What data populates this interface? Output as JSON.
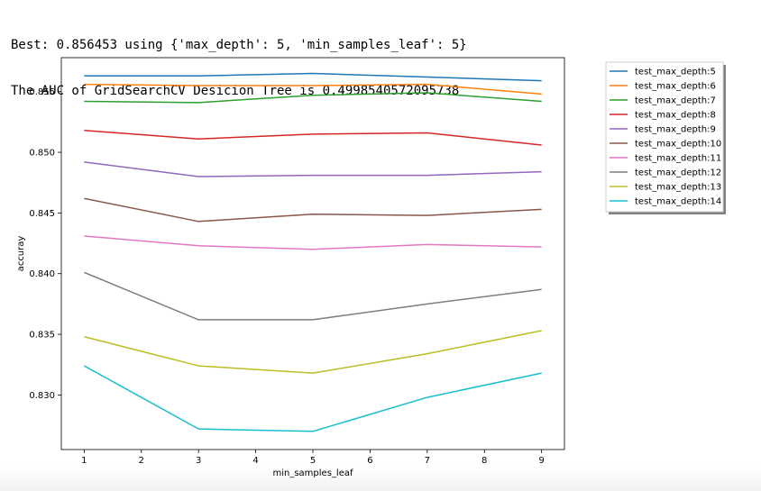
{
  "output": {
    "line1": "Best: 0.856453 using {'max_depth': 5, 'min_samples_leaf': 5}",
    "line2": "The AUC of GridSearchCV Desicion Tree is 0.4998540572095738"
  },
  "chart_data": {
    "type": "line",
    "title": "",
    "xlabel": "min_samples_leaf",
    "ylabel": "accuray",
    "xlim": [
      0.6,
      9.4
    ],
    "ylim": [
      0.8255,
      0.8578
    ],
    "x_ticks": [
      1,
      2,
      3,
      4,
      5,
      6,
      7,
      8,
      9
    ],
    "y_ticks": [
      0.83,
      0.835,
      0.84,
      0.845,
      0.85,
      0.855
    ],
    "y_tick_labels": [
      "0.830",
      "0.835",
      "0.840",
      "0.845",
      "0.850",
      "0.855"
    ],
    "x": [
      1,
      3,
      5,
      7,
      9
    ],
    "grid": false,
    "legend_position": "outside-upper-right",
    "series": [
      {
        "name": "test_max_depth:5",
        "color": "#1f77b4",
        "values": [
          0.8563,
          0.8563,
          0.8565,
          0.8562,
          0.8559
        ]
      },
      {
        "name": "test_max_depth:6",
        "color": "#ff7f0e",
        "values": [
          0.8556,
          0.8555,
          0.8555,
          0.8556,
          0.8548
        ]
      },
      {
        "name": "test_max_depth:7",
        "color": "#2ca02c",
        "values": [
          0.8542,
          0.8541,
          0.8547,
          0.8549,
          0.8542
        ]
      },
      {
        "name": "test_max_depth:8",
        "color": "#d62728",
        "values": [
          0.8518,
          0.8511,
          0.8515,
          0.8516,
          0.8506
        ]
      },
      {
        "name": "test_max_depth:9",
        "color": "#9467bd",
        "values": [
          0.8492,
          0.848,
          0.8481,
          0.8481,
          0.8484
        ]
      },
      {
        "name": "test_max_depth:10",
        "color": "#8c564b",
        "values": [
          0.8462,
          0.8443,
          0.8449,
          0.8448,
          0.8453
        ]
      },
      {
        "name": "test_max_depth:11",
        "color": "#e377c2",
        "values": [
          0.8431,
          0.8423,
          0.842,
          0.8424,
          0.8422
        ]
      },
      {
        "name": "test_max_depth:12",
        "color": "#7f7f7f",
        "values": [
          0.8401,
          0.8362,
          0.8362,
          0.8375,
          0.8387
        ]
      },
      {
        "name": "test_max_depth:13",
        "color": "#bcbd22",
        "values": [
          0.8348,
          0.8324,
          0.8318,
          0.8334,
          0.8353
        ]
      },
      {
        "name": "test_max_depth:14",
        "color": "#17becf",
        "values": [
          0.8324,
          0.8272,
          0.827,
          0.8298,
          0.8318
        ]
      }
    ]
  }
}
